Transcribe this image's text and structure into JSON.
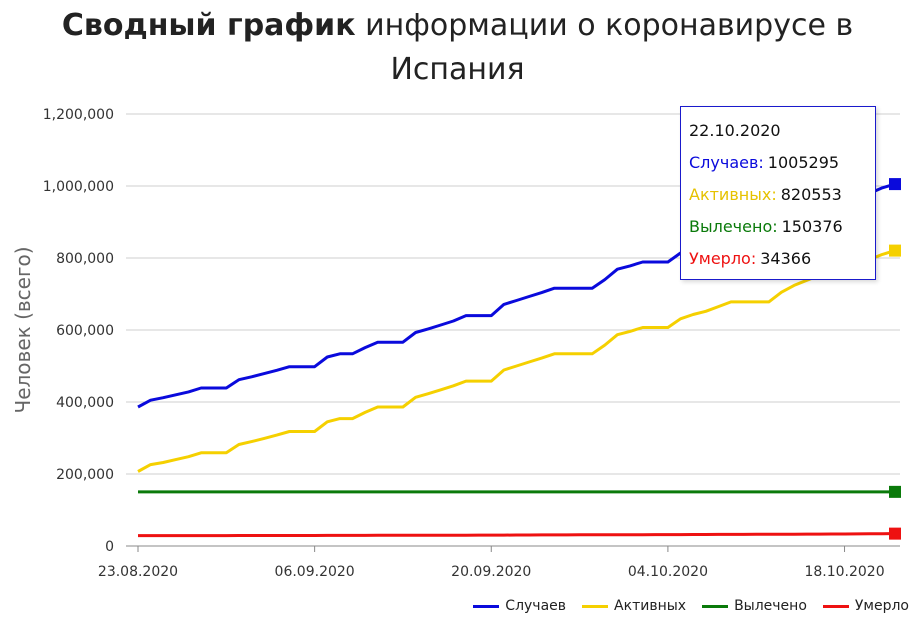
{
  "title": {
    "bold": "Сводный график",
    "rest": " информации о коронавирусе в Испания"
  },
  "colors": {
    "cases": "#0a0adc",
    "active": "#f5d000",
    "recovered": "#0a7a0a",
    "deaths": "#ee1111"
  },
  "tooltip": {
    "date": "22.10.2020",
    "rows": [
      {
        "label": "Случаев:",
        "value": "1005295"
      },
      {
        "label": "Активных:",
        "value": "820553"
      },
      {
        "label": "Вылечено:",
        "value": "150376"
      },
      {
        "label": "Умерло:",
        "value": "34366"
      }
    ]
  },
  "chart_data": {
    "type": "line",
    "ylabel": "Человек (всего)",
    "xlabel": "",
    "ylim": [
      0,
      1200000
    ],
    "yticks": [
      "0",
      "200,000",
      "400,000",
      "600,000",
      "800,000",
      "1,000,000",
      "1,200,000"
    ],
    "ytick_values": [
      0,
      200000,
      400000,
      600000,
      800000,
      1000000,
      1200000
    ],
    "xtick_labels": [
      "23.08.2020",
      "06.09.2020",
      "20.09.2020",
      "04.10.2020",
      "18.10.2020"
    ],
    "x": [
      "23.08.2020",
      "24.08.2020",
      "25.08.2020",
      "26.08.2020",
      "27.08.2020",
      "28.08.2020",
      "29.08.2020",
      "30.08.2020",
      "31.08.2020",
      "01.09.2020",
      "02.09.2020",
      "03.09.2020",
      "04.09.2020",
      "05.09.2020",
      "06.09.2020",
      "07.09.2020",
      "08.09.2020",
      "09.09.2020",
      "10.09.2020",
      "11.09.2020",
      "12.09.2020",
      "13.09.2020",
      "14.09.2020",
      "15.09.2020",
      "16.09.2020",
      "17.09.2020",
      "18.09.2020",
      "19.09.2020",
      "20.09.2020",
      "21.09.2020",
      "22.09.2020",
      "23.09.2020",
      "24.09.2020",
      "25.09.2020",
      "26.09.2020",
      "27.09.2020",
      "28.09.2020",
      "29.09.2020",
      "30.09.2020",
      "01.10.2020",
      "02.10.2020",
      "03.10.2020",
      "04.10.2020",
      "05.10.2020",
      "06.10.2020",
      "07.10.2020",
      "08.10.2020",
      "09.10.2020",
      "10.10.2020",
      "11.10.2020",
      "12.10.2020",
      "13.10.2020",
      "14.10.2020",
      "15.10.2020",
      "16.10.2020",
      "17.10.2020",
      "18.10.2020",
      "19.10.2020",
      "20.10.2020",
      "21.10.2020",
      "22.10.2020"
    ],
    "series": [
      {
        "name": "Случаев",
        "color": "#0a0adc",
        "values": [
          386000,
          405000,
          412000,
          420000,
          428000,
          439000,
          439000,
          439000,
          462000,
          470000,
          479000,
          488000,
          498000,
          498000,
          498000,
          525000,
          534000,
          534000,
          551000,
          566000,
          566000,
          566000,
          593000,
          603000,
          614000,
          625000,
          640000,
          640000,
          640000,
          671000,
          682000,
          693000,
          704000,
          716000,
          716000,
          716000,
          716000,
          740000,
          769000,
          778000,
          789000,
          789000,
          789000,
          814000,
          826000,
          835000,
          848000,
          862000,
          862000,
          862000,
          862000,
          889000,
          908000,
          922000,
          936000,
          936000,
          936000,
          965000,
          980000,
          995000,
          1005295
        ]
      },
      {
        "name": "Активных",
        "color": "#f5d000",
        "values": [
          207000,
          226000,
          232000,
          240000,
          248000,
          259000,
          259000,
          259000,
          282000,
          290000,
          299000,
          308000,
          318000,
          318000,
          318000,
          345000,
          354000,
          354000,
          371000,
          386000,
          386000,
          386000,
          413000,
          423000,
          434000,
          445000,
          458000,
          458000,
          458000,
          489000,
          500000,
          511000,
          522000,
          534000,
          534000,
          534000,
          534000,
          558000,
          587000,
          596000,
          607000,
          607000,
          607000,
          631000,
          643000,
          652000,
          665000,
          678000,
          678000,
          678000,
          678000,
          705000,
          724000,
          738000,
          752000,
          752000,
          752000,
          781000,
          796000,
          810000,
          820553
        ]
      },
      {
        "name": "Вылечено",
        "color": "#0a7a0a",
        "values": [
          150376,
          150376,
          150376,
          150376,
          150376,
          150376,
          150376,
          150376,
          150376,
          150376,
          150376,
          150376,
          150376,
          150376,
          150376,
          150376,
          150376,
          150376,
          150376,
          150376,
          150376,
          150376,
          150376,
          150376,
          150376,
          150376,
          150376,
          150376,
          150376,
          150376,
          150376,
          150376,
          150376,
          150376,
          150376,
          150376,
          150376,
          150376,
          150376,
          150376,
          150376,
          150376,
          150376,
          150376,
          150376,
          150376,
          150376,
          150376,
          150376,
          150376,
          150376,
          150376,
          150376,
          150376,
          150376,
          150376,
          150376,
          150376,
          150376,
          150376,
          150376
        ]
      },
      {
        "name": "Умерло",
        "color": "#ee1111",
        "values": [
          28900,
          28900,
          28900,
          28900,
          28950,
          29000,
          29000,
          29000,
          29100,
          29150,
          29200,
          29250,
          29300,
          29300,
          29300,
          29400,
          29450,
          29500,
          29550,
          29600,
          29650,
          29700,
          29800,
          29850,
          29900,
          30000,
          30100,
          30200,
          30300,
          30400,
          30500,
          30600,
          30700,
          30800,
          30900,
          31000,
          31100,
          31200,
          31300,
          31400,
          31500,
          31600,
          31700,
          31800,
          31900,
          32000,
          32100,
          32200,
          32300,
          32400,
          32500,
          32650,
          32800,
          32950,
          33100,
          33250,
          33400,
          33600,
          33800,
          34100,
          34366
        ]
      }
    ],
    "legend_position": "bottom-right",
    "grid": "horizontal"
  },
  "legend": [
    {
      "label": "Случаев",
      "color": "#0a0adc"
    },
    {
      "label": "Активных",
      "color": "#f5d000"
    },
    {
      "label": "Вылечено",
      "color": "#0a7a0a"
    },
    {
      "label": "Умерло",
      "color": "#ee1111"
    }
  ]
}
